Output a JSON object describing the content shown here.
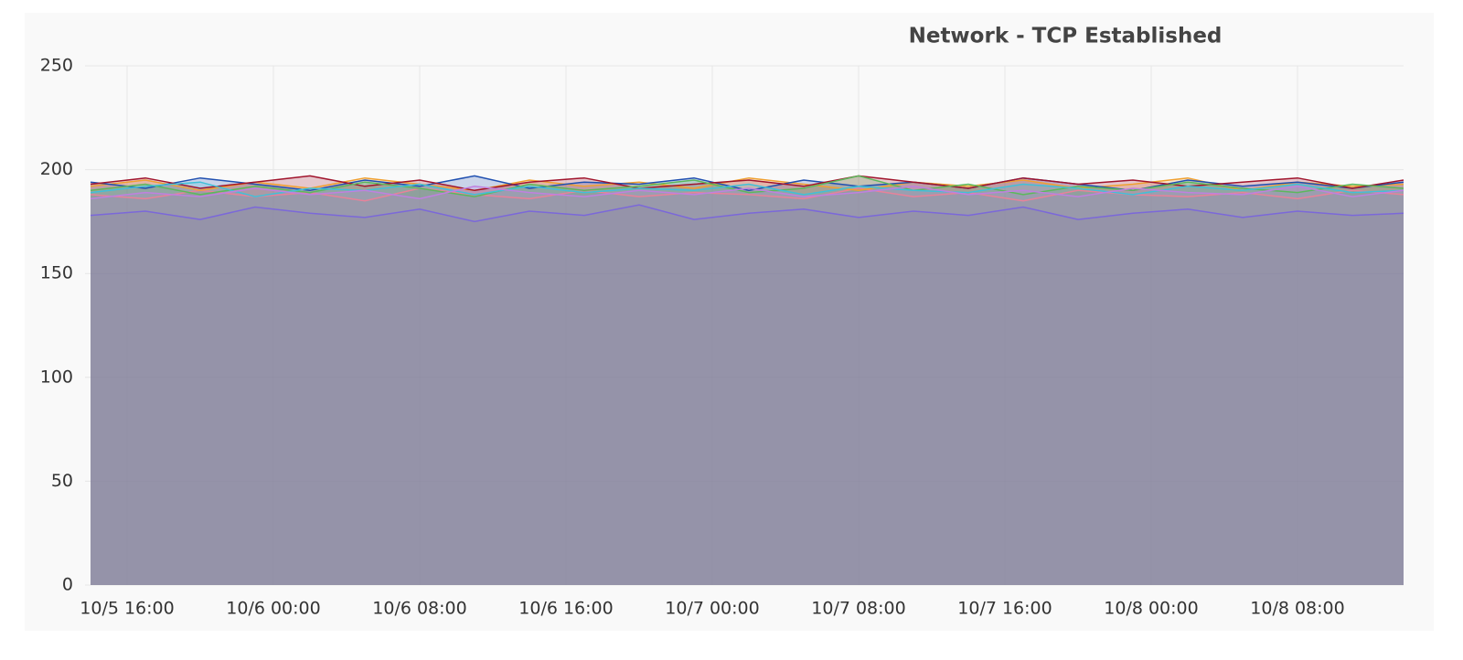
{
  "chart_data": {
    "type": "area",
    "title": "Network - TCP Established",
    "x": [
      -2,
      1,
      4,
      7,
      10,
      13,
      16,
      19,
      22,
      25,
      28,
      31,
      34,
      37,
      40,
      43,
      46,
      49,
      52,
      55,
      58,
      61,
      64,
      67,
      69.8
    ],
    "xlim": [
      -2.1,
      69.8
    ],
    "xticks": [
      {
        "value": 0,
        "label": "10/5 16:00"
      },
      {
        "value": 8,
        "label": "10/6 00:00"
      },
      {
        "value": 16,
        "label": "10/6 08:00"
      },
      {
        "value": 24,
        "label": "10/6 16:00"
      },
      {
        "value": 32,
        "label": "10/7 00:00"
      },
      {
        "value": 40,
        "label": "10/7 08:00"
      },
      {
        "value": 48,
        "label": "10/7 16:00"
      },
      {
        "value": 56,
        "label": "10/8 00:00"
      },
      {
        "value": 64,
        "label": "10/8 08:00"
      }
    ],
    "ylim": [
      0,
      250
    ],
    "yticks": [
      0,
      50,
      100,
      150,
      200,
      250
    ],
    "grid": true,
    "series": [
      {
        "color": "#7b68d9",
        "values": [
          178,
          180,
          176,
          182,
          179,
          177,
          181,
          175,
          180,
          178,
          183,
          176,
          179,
          181,
          177,
          180,
          178,
          182,
          176,
          179,
          181,
          177,
          180,
          178,
          179
        ]
      },
      {
        "color": "#e8829a",
        "values": [
          188,
          186,
          190,
          187,
          189,
          185,
          191,
          188,
          186,
          190,
          187,
          189,
          188,
          186,
          191,
          187,
          189,
          185,
          190,
          188,
          187,
          189,
          186,
          190,
          188
        ]
      },
      {
        "color": "#f0a030",
        "values": [
          192,
          195,
          190,
          194,
          191,
          196,
          193,
          190,
          195,
          192,
          194,
          191,
          196,
          193,
          190,
          194,
          192,
          195,
          191,
          193,
          196,
          190,
          194,
          192,
          193
        ]
      },
      {
        "color": "#1f4fb0",
        "values": [
          194,
          191,
          196,
          193,
          190,
          195,
          192,
          197,
          191,
          194,
          193,
          196,
          190,
          195,
          192,
          194,
          191,
          196,
          193,
          190,
          195,
          192,
          194,
          191,
          194
        ]
      },
      {
        "color": "#a0142c",
        "values": [
          193,
          196,
          191,
          194,
          197,
          192,
          195,
          190,
          194,
          196,
          191,
          193,
          195,
          192,
          197,
          194,
          191,
          196,
          193,
          195,
          192,
          194,
          196,
          191,
          195
        ]
      },
      {
        "color": "#5cb85c",
        "values": [
          190,
          193,
          188,
          192,
          189,
          194,
          191,
          187,
          193,
          190,
          192,
          195,
          189,
          191,
          197,
          190,
          193,
          188,
          192,
          190,
          194,
          191,
          189,
          193,
          191
        ]
      },
      {
        "color": "#40c0d8",
        "values": [
          189,
          192,
          194,
          187,
          191,
          190,
          193,
          188,
          192,
          189,
          191,
          190,
          193,
          188,
          192,
          190,
          189,
          193,
          191,
          188,
          192,
          190,
          193,
          189,
          190
        ]
      },
      {
        "color": "#c080e0",
        "values": [
          186,
          189,
          187,
          191,
          188,
          190,
          186,
          192,
          189,
          187,
          190,
          188,
          191,
          187,
          189,
          192,
          188,
          190,
          187,
          191,
          189,
          188,
          192,
          187,
          190
        ]
      }
    ]
  }
}
